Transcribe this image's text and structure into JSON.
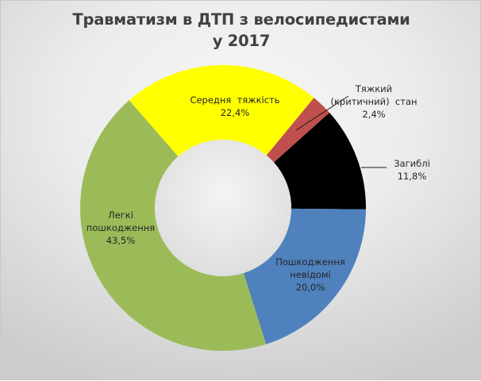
{
  "chart_data": {
    "type": "pie",
    "variant": "doughnut",
    "title": "Травматизм в ДТП з велосипедистами у 2017",
    "title_lines": [
      "Травматизм в ДТП з велосипедистами",
      "у 2017"
    ],
    "start_angle_deg": 39.5,
    "hole_ratio": 0.48,
    "slices": [
      {
        "name": "Тяжкий (критичний) стан",
        "value": 2.4,
        "label": "2,4%",
        "color": "#c0504d"
      },
      {
        "name": "Загиблі",
        "value": 11.8,
        "label": "11,8%",
        "color": "#000000"
      },
      {
        "name": "Пошкодження невідомі",
        "value": 20.0,
        "label": "20,0%",
        "color": "#4f81bd"
      },
      {
        "name": "Легкі пошкодження",
        "value": 43.5,
        "label": "43,5%",
        "color": "#9bbb59"
      },
      {
        "name": "Середня тяжкість",
        "value": 22.4,
        "label": "22,4%",
        "color": "#ffff00"
      }
    ],
    "legend": "none",
    "data_labels": "category name and percentage"
  },
  "labels": {
    "critical": {
      "line1": "Тяжкий",
      "line2": "(критичний)  стан",
      "value": "2,4%"
    },
    "dead": {
      "line1": "Загиблі",
      "value": "11,8%"
    },
    "unknown": {
      "line1": "Пошкодження",
      "line2": "невідомі",
      "value": "20,0%"
    },
    "light": {
      "line1": "Легкі",
      "line2": "пошкодження",
      "value": "43,5%"
    },
    "medium": {
      "line1": "Середня  тяжкість",
      "value": "22,4%"
    }
  }
}
